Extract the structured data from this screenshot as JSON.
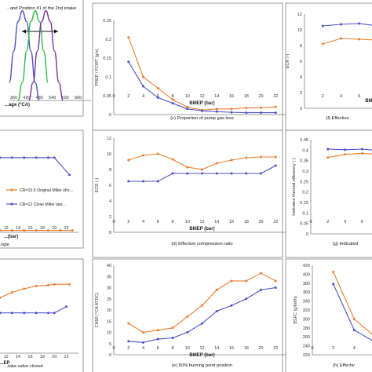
{
  "colors": {
    "orange": "#ed7d31",
    "blue": "#4b52c8",
    "green": "#2db845",
    "purple": "#7b2f9e",
    "panel_border": "#7f7f7f",
    "axis": "#7f7f7f"
  },
  "chart_data": [
    {
      "id": "b",
      "type": "line",
      "annotation": "...and Position #1 of the 2nd intake",
      "xlabel": "...age (°CA)",
      "ylabel": "",
      "x_ticks": [
        "360",
        "420",
        "480",
        "540",
        "600",
        "660",
        "720"
      ],
      "xlim": [
        340,
        720
      ],
      "ylim": [
        0,
        1.05
      ],
      "series": [
        {
          "color": "#4b52c8",
          "x": [
            340,
            360,
            380,
            400,
            420,
            440,
            460,
            480
          ],
          "y": [
            0.2,
            0.55,
            0.88,
            1.0,
            0.88,
            0.55,
            0.2,
            0
          ]
        },
        {
          "color": "#2db845",
          "x": [
            380,
            400,
            420,
            440,
            460,
            480,
            500,
            520
          ],
          "y": [
            0,
            0.2,
            0.55,
            0.88,
            1.0,
            0.88,
            0.55,
            0.2
          ]
        },
        {
          "color": "#7b2f9e",
          "x": [
            430,
            450,
            470,
            490,
            510,
            530,
            550,
            570,
            590
          ],
          "y": [
            0,
            0.2,
            0.55,
            0.88,
            1.0,
            0.88,
            0.55,
            0.2,
            0
          ]
        }
      ]
    },
    {
      "id": "c",
      "type": "line",
      "caption": "(c)  Proportion of pump gas loss",
      "xlabel": "BMEP  (bar)",
      "ylabel": "PREP / PORT  (g/s)",
      "x_ticks": [
        "0",
        "2",
        "4",
        "6",
        "8",
        "10",
        "12",
        "14",
        "16",
        "18",
        "20",
        "22",
        "24"
      ],
      "y_ticks": [
        "0",
        "0.05",
        "0.1",
        "0.15",
        "0.2",
        "0.25"
      ],
      "xlim": [
        0,
        24
      ],
      "ylim": [
        0,
        0.25
      ],
      "series": [
        {
          "color": "#ed7d31",
          "x": [
            2,
            4,
            6,
            8,
            10,
            12,
            14,
            16,
            18,
            20,
            22
          ],
          "y": [
            0.205,
            0.1,
            0.07,
            0.04,
            0.02,
            0.012,
            0.015,
            0.015,
            0.018,
            0.018,
            0.02
          ]
        },
        {
          "color": "#4b52c8",
          "x": [
            2,
            4,
            6,
            8,
            10,
            12,
            14,
            16,
            18,
            20,
            22
          ],
          "y": [
            0.14,
            0.075,
            0.045,
            0.03,
            0.015,
            0.01,
            0.008,
            0.006,
            0.005,
            0.005,
            0.005
          ]
        }
      ]
    },
    {
      "id": "f",
      "type": "line",
      "caption": "(f)  Effective",
      "xlabel": "BM",
      "ylabel": "ECR (-)",
      "x_ticks": [
        "2",
        "4",
        "6",
        "8",
        "10"
      ],
      "y_ticks": [
        "0",
        "2",
        "4",
        "6",
        "8",
        "10",
        "12"
      ],
      "xlim": [
        0,
        11
      ],
      "ylim": [
        0,
        12
      ],
      "series": [
        {
          "color": "#4b52c8",
          "x": [
            2,
            4,
            6,
            8,
            10
          ],
          "y": [
            10.5,
            10.7,
            10.8,
            10.5,
            10.8
          ]
        },
        {
          "color": "#ed7d31",
          "x": [
            2,
            4,
            6,
            8,
            10
          ],
          "y": [
            8.2,
            8.9,
            8.8,
            8.7,
            8.2
          ]
        }
      ]
    },
    {
      "id": "d",
      "type": "line",
      "caption": "...ngle",
      "xlabel": "...(bar)",
      "legend": [
        "CR=10.5 Original Miller sho...",
        "CR=12 Close Miller late..."
      ],
      "x_ticks": [
        "12",
        "14",
        "16",
        "18",
        "20",
        "22"
      ],
      "xlim": [
        11,
        24
      ],
      "ylim": [
        0,
        1
      ],
      "series": [
        {
          "color": "#4b52c8",
          "x": [
            11,
            13,
            15,
            17,
            19,
            20,
            22.5
          ],
          "y": [
            0.78,
            0.78,
            0.78,
            0.78,
            0.78,
            0.78,
            0.6
          ]
        },
        {
          "color": "#ed7d31",
          "x": [
            11,
            13,
            15,
            17,
            19,
            21,
            23
          ],
          "y": [
            0.02,
            0.02,
            0.02,
            0.02,
            0.02,
            0.02,
            0.02
          ]
        }
      ]
    },
    {
      "id": "e",
      "type": "line",
      "caption": "(d)  Effective compression ratio",
      "xlabel": "BMEP  (bar)",
      "ylabel": "ECR (-)",
      "x_ticks": [
        "0",
        "2",
        "4",
        "6",
        "8",
        "10",
        "12",
        "14",
        "16",
        "18",
        "20",
        "22",
        "24"
      ],
      "y_ticks": [
        "0",
        "2",
        "4",
        "6",
        "8",
        "10",
        "12"
      ],
      "xlim": [
        0,
        24
      ],
      "ylim": [
        0,
        12
      ],
      "series": [
        {
          "color": "#ed7d31",
          "x": [
            2,
            4,
            6,
            8,
            10,
            12,
            14,
            16,
            18,
            20,
            22
          ],
          "y": [
            9.2,
            9.8,
            10.0,
            9.3,
            8.3,
            8.0,
            8.8,
            9.2,
            9.5,
            9.6,
            9.6
          ]
        },
        {
          "color": "#4b52c8",
          "x": [
            2,
            4,
            6,
            8,
            10,
            12,
            14,
            16,
            18,
            20,
            22
          ],
          "y": [
            6.5,
            6.5,
            6.5,
            7.5,
            7.5,
            7.5,
            7.5,
            7.5,
            7.5,
            7.5,
            8.5
          ]
        }
      ]
    },
    {
      "id": "g",
      "type": "line",
      "caption": "(g)  Indicated",
      "xlabel": "",
      "ylabel": "Indicated thermal efficiency (-)",
      "x_ticks": [
        "0",
        "2",
        "4",
        "6",
        "8",
        "10"
      ],
      "y_ticks": [
        "0",
        "0.05",
        "0.1",
        "0.15",
        "0.2",
        "0.25",
        "0.3",
        "0.35",
        "0.4",
        "0.45"
      ],
      "xlim": [
        0,
        11
      ],
      "ylim": [
        0,
        0.45
      ],
      "series": [
        {
          "color": "#4b52c8",
          "x": [
            2,
            4,
            6,
            8,
            10
          ],
          "y": [
            0.405,
            0.402,
            0.405,
            0.398,
            0.395
          ]
        },
        {
          "color": "#ed7d31",
          "x": [
            2,
            4,
            6,
            8,
            10
          ],
          "y": [
            0.365,
            0.38,
            0.385,
            0.38,
            0.378
          ]
        }
      ]
    },
    {
      "id": "h",
      "type": "line",
      "caption": "...take valve closed",
      "xlabel": "...EP",
      "x_ticks": [
        "12",
        "14",
        "16",
        "18",
        "20",
        "22"
      ],
      "xlim": [
        11,
        24
      ],
      "ylim": [
        0,
        1
      ],
      "series": [
        {
          "color": "#ed7d31",
          "x": [
            11,
            13,
            15,
            17,
            19,
            20,
            22.5
          ],
          "y": [
            0.62,
            0.68,
            0.72,
            0.75,
            0.76,
            0.77,
            0.77
          ]
        },
        {
          "color": "#4b52c8",
          "x": [
            11,
            13,
            15,
            17,
            19,
            20,
            22
          ],
          "y": [
            0.45,
            0.45,
            0.45,
            0.45,
            0.45,
            0.45,
            0.52
          ]
        }
      ]
    },
    {
      "id": "i",
      "type": "line",
      "caption": "(e)  50% burning point position",
      "xlabel": "BMEP  (bar)",
      "ylabel": "CA50 (°CA ATDC)",
      "x_ticks": [
        "0",
        "2",
        "4",
        "6",
        "8",
        "10",
        "12",
        "14",
        "16",
        "18",
        "20",
        "22",
        "24"
      ],
      "y_ticks": [
        "0",
        "5",
        "10",
        "15",
        "20",
        "25",
        "30",
        "35",
        "40"
      ],
      "xlim": [
        0,
        24
      ],
      "ylim": [
        0,
        40
      ],
      "series": [
        {
          "color": "#ed7d31",
          "x": [
            2,
            4,
            6,
            8,
            10,
            12,
            14,
            16,
            18,
            20,
            22
          ],
          "y": [
            14,
            10,
            11,
            12,
            17,
            22,
            29,
            33,
            33,
            36.5,
            33
          ]
        },
        {
          "color": "#4b52c8",
          "x": [
            2,
            4,
            6,
            8,
            10,
            12,
            14,
            16,
            18,
            20,
            22
          ],
          "y": [
            6,
            5.5,
            7,
            7.5,
            10,
            14,
            19.5,
            22,
            25,
            29,
            30
          ]
        }
      ]
    },
    {
      "id": "j",
      "type": "line",
      "caption": "(h)  Effectiv",
      "xlabel": "",
      "ylabel": "BSFC (g/kWh)",
      "x_ticks": [
        "0",
        "2",
        "4",
        "6",
        "8"
      ],
      "y_ticks": [
        "220",
        "240",
        "260",
        "280",
        "300",
        "320",
        "340",
        "360",
        "380",
        "400",
        "420"
      ],
      "xlim": [
        0,
        9
      ],
      "ylim": [
        220,
        420
      ],
      "series": [
        {
          "color": "#ed7d31",
          "x": [
            2,
            4,
            6,
            8,
            9
          ],
          "y": [
            405,
            300,
            260,
            252,
            250
          ]
        },
        {
          "color": "#4b52c8",
          "x": [
            2,
            4,
            6,
            8,
            9
          ],
          "y": [
            378,
            275,
            248,
            240,
            238
          ]
        }
      ]
    }
  ]
}
